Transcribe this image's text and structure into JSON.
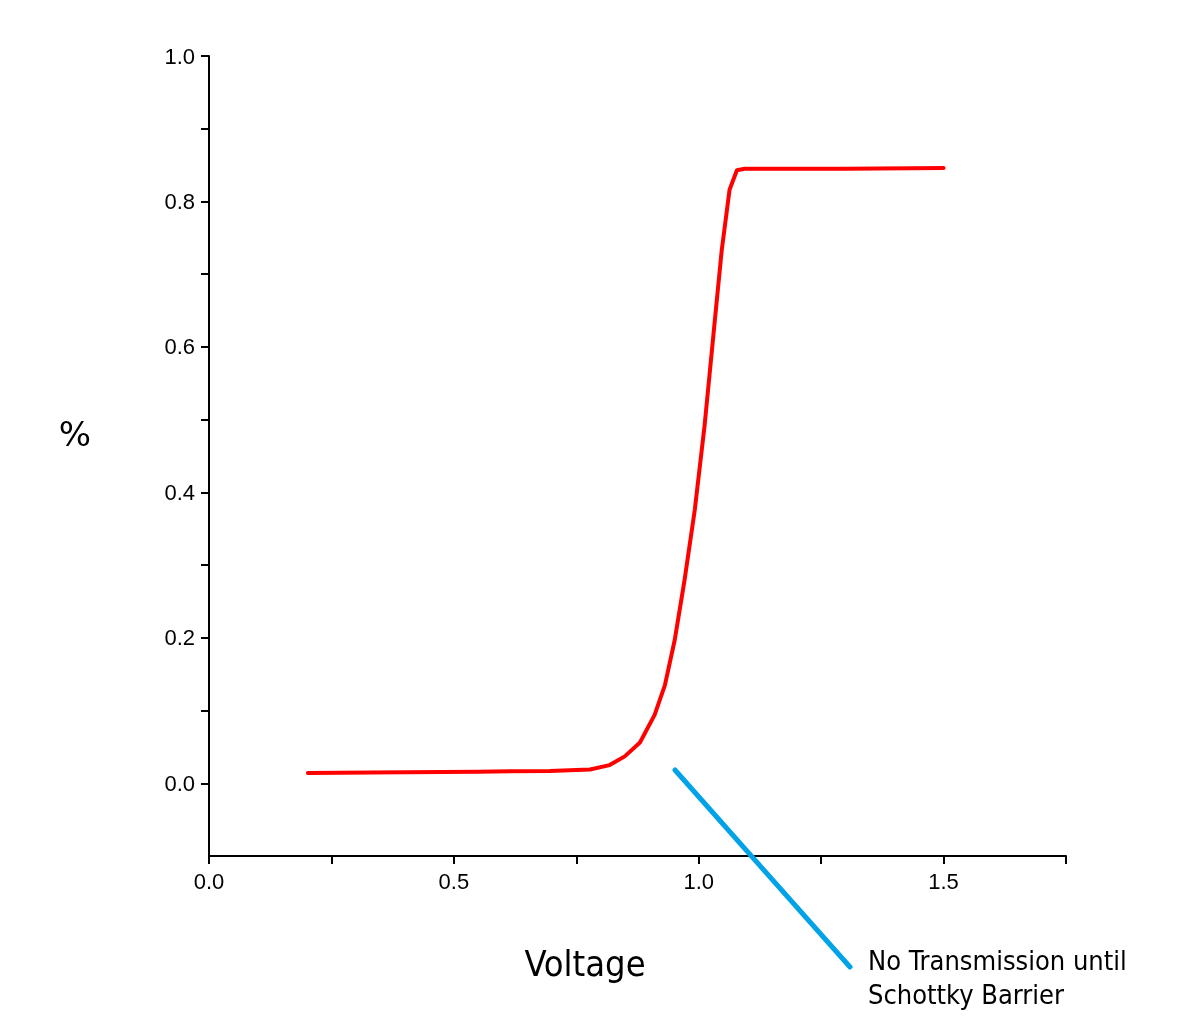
{
  "chart_data": {
    "type": "line",
    "xlabel": "Voltage",
    "ylabel": "%",
    "x": [
      0.202,
      0.4,
      0.55,
      0.696,
      0.778,
      0.818,
      0.849,
      0.88,
      0.91,
      0.931,
      0.951,
      0.971,
      0.992,
      1.012,
      1.033,
      1.047,
      1.063,
      1.078,
      1.094,
      1.3,
      1.5
    ],
    "series": [
      {
        "color": "#ff0000",
        "values": [
          0.014,
          0.015,
          0.016,
          0.017,
          0.019,
          0.025,
          0.037,
          0.056,
          0.094,
          0.135,
          0.197,
          0.279,
          0.376,
          0.492,
          0.637,
          0.733,
          0.816,
          0.843,
          0.845,
          0.845,
          0.846
        ]
      }
    ],
    "xlim": [
      0,
      1.75
    ],
    "xticks": [
      {
        "value": 0,
        "label": "0.0"
      },
      {
        "value": 0.25,
        "label": null
      },
      {
        "value": 0.5,
        "label": "0.5"
      },
      {
        "value": 0.75,
        "label": null
      },
      {
        "value": 1,
        "label": "1.0"
      },
      {
        "value": 1.25,
        "label": null
      },
      {
        "value": 1.5,
        "label": "1.5"
      },
      {
        "value": 1.75,
        "label": null
      }
    ],
    "ylim": [
      -0.1,
      1
    ],
    "yticks": [
      {
        "value": 0,
        "label": "0.0"
      },
      {
        "value": 0.1,
        "label": null
      },
      {
        "value": 0.2,
        "label": "0.2"
      },
      {
        "value": 0.3,
        "label": null
      },
      {
        "value": 0.4,
        "label": "0.4"
      },
      {
        "value": 0.5,
        "label": null
      },
      {
        "value": 0.6,
        "label": "0.6"
      },
      {
        "value": 0.7,
        "label": null
      },
      {
        "value": 0.8,
        "label": "0.8"
      },
      {
        "value": 0.9,
        "label": null
      },
      {
        "value": 1,
        "label": "1.0"
      }
    ],
    "annotations": [
      "No Transmission until Schottky Barrier"
    ],
    "grid": false,
    "marker": "none",
    "line_style": "solid"
  }
}
